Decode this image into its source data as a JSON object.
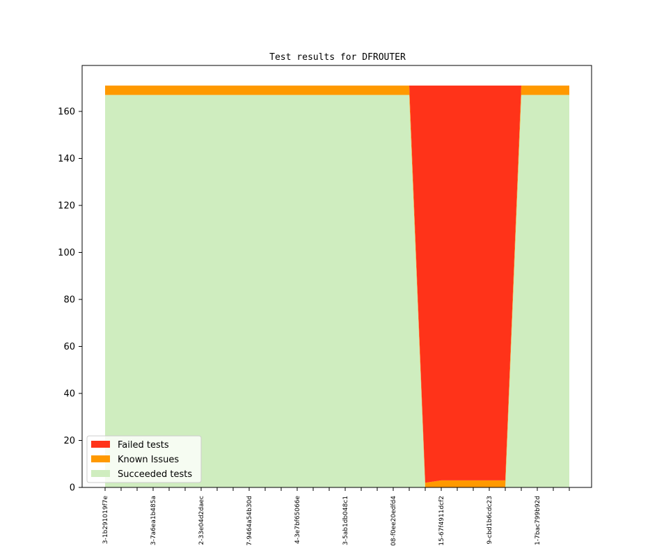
{
  "chart_data": {
    "type": "area",
    "stacked": true,
    "title": "Test results for DFROUTER",
    "xlabel": "",
    "ylabel": "",
    "ylim": [
      0,
      171
    ],
    "yticks": [
      0,
      20,
      40,
      60,
      80,
      100,
      120,
      140,
      160
    ],
    "x": [
      "3-1b291019f7e",
      "",
      "",
      "3-7a6ea1b485a",
      "",
      "",
      "2-33e04d2daec",
      "",
      "",
      "7-9464a54b30d",
      "",
      "",
      "4-3e7bf65066e",
      "",
      "",
      "3-5ab1db048c1",
      "",
      "",
      "08-f0ee20edfd4",
      "",
      "",
      "15-67f4911dcf2",
      "",
      "",
      "9-cbd1b6cdc23",
      "",
      "",
      "1-7bac799b92d",
      "",
      ""
    ],
    "series": [
      {
        "name": "Succeeded tests",
        "color": "#cfedbf",
        "values": [
          167,
          167,
          167,
          167,
          167,
          167,
          167,
          167,
          167,
          167,
          167,
          167,
          167,
          167,
          167,
          167,
          167,
          167,
          167,
          167,
          0,
          0,
          0,
          0,
          0,
          0,
          167,
          167,
          167,
          167
        ]
      },
      {
        "name": "Known Issues",
        "color": "#ff9900",
        "values": [
          4,
          4,
          4,
          4,
          4,
          4,
          4,
          4,
          4,
          4,
          4,
          4,
          4,
          4,
          4,
          4,
          4,
          4,
          4,
          4,
          2,
          3,
          3,
          3,
          3,
          3,
          4,
          4,
          4,
          4
        ]
      },
      {
        "name": "Failed tests",
        "color": "#ff3319",
        "values": [
          0,
          0,
          0,
          0,
          0,
          0,
          0,
          0,
          0,
          0,
          0,
          0,
          0,
          0,
          0,
          0,
          0,
          0,
          0,
          0,
          169,
          168,
          168,
          168,
          168,
          168,
          0,
          0,
          0,
          0
        ]
      }
    ],
    "legend_entries": [
      "Failed tests",
      "Known Issues",
      "Succeeded tests"
    ],
    "legend_position": "lower-left",
    "grid": false
  }
}
